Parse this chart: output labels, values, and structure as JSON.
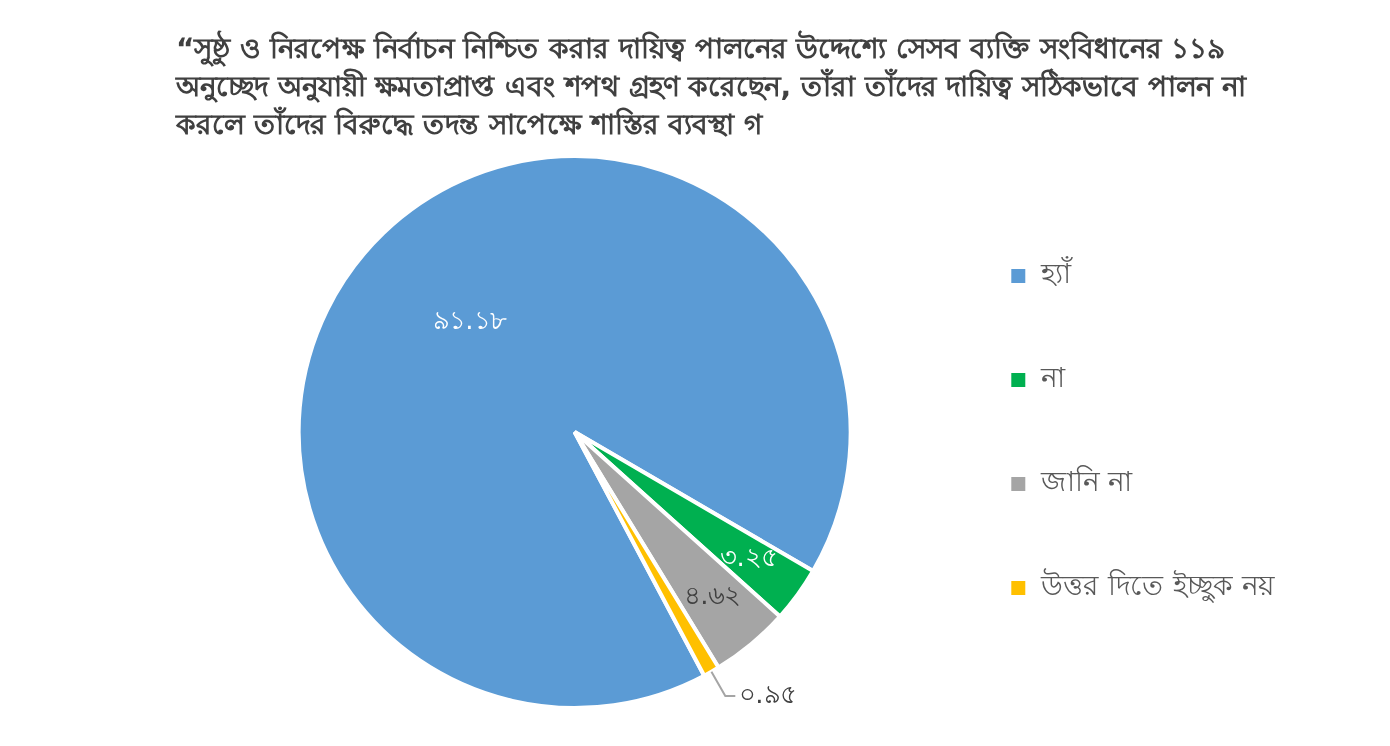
{
  "chart_data": {
    "type": "pie",
    "title": "“সুষ্ঠু ও নিরপেক্ষ নির্বাচন নিশ্চিত করার  দায়িত্ব পালনের উদ্দেশ্যে সেসব ব্যক্তি সংবিধানের ১১৯ অনুচ্ছেদ অনুযায়ী ক্ষমতাপ্রাপ্ত এবং শপথ গ্রহণ করেছেন, তাঁরা তাঁদের দায়িত্ব সঠিকভাবে পালন না করলে তাঁদের বিরুদ্ধে তদন্ত সাপেক্ষে শাস্তির ব্যবস্থা গ",
    "categories": [
      "হ্যাঁ",
      "না",
      "জানি না",
      "উত্তর দিতে ইচ্ছুক নয়"
    ],
    "values": [
      91.18,
      3.25,
      4.62,
      0.95
    ],
    "colors": [
      "#5b9bd5",
      "#00b050",
      "#a5a5a5",
      "#ffc000"
    ],
    "value_labels": [
      "৯১.১৮",
      "৩.২৫",
      "৪.৬২",
      "০.৯৫"
    ],
    "legend": "right"
  }
}
